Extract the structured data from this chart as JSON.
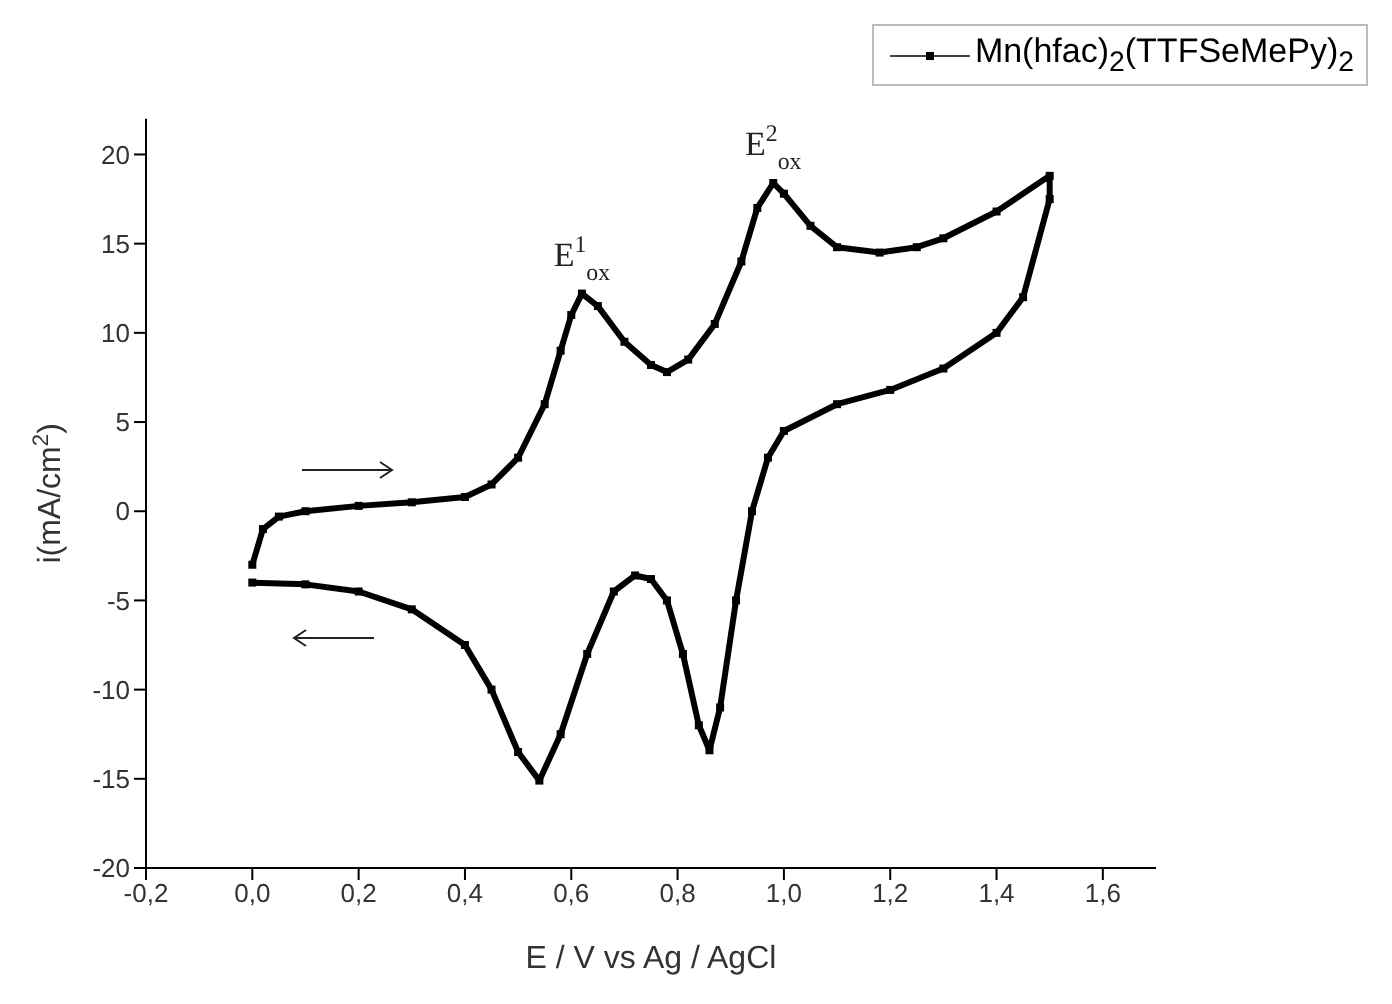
{
  "chart_data": {
    "type": "line",
    "xlabel": "E / V vs Ag / AgCl",
    "ylabel": "i(mA/cm$^{2}$)",
    "series": [
      {
        "name": "Mn(hfac)$_{2}$(TTFSeMePy)$_{2}$",
        "color": "#000000",
        "x": [
          0,
          0.02,
          0.05,
          0.1,
          0.2,
          0.3,
          0.4,
          0.45,
          0.5,
          0.55,
          0.58,
          0.6,
          0.62,
          0.65,
          0.7,
          0.75,
          0.78,
          0.82,
          0.87,
          0.92,
          0.95,
          0.98,
          1.0,
          1.05,
          1.1,
          1.18,
          1.25,
          1.3,
          1.4,
          1.5,
          1.5,
          1.45,
          1.4,
          1.3,
          1.2,
          1.1,
          1.0,
          0.97,
          0.94,
          0.91,
          0.88,
          0.86,
          0.84,
          0.81,
          0.78,
          0.75,
          0.72,
          0.68,
          0.63,
          0.58,
          0.54,
          0.5,
          0.45,
          0.4,
          0.3,
          0.2,
          0.1,
          0
        ],
        "values": [
          -3,
          -1,
          -0.3,
          0,
          0.3,
          0.5,
          0.8,
          1.5,
          3,
          6,
          9,
          11,
          12.2,
          11.5,
          9.5,
          8.2,
          7.8,
          8.5,
          10.5,
          14,
          17,
          18.4,
          17.8,
          16,
          14.8,
          14.5,
          14.8,
          15.3,
          16.8,
          18.8,
          17.5,
          12,
          10,
          8,
          6.8,
          6,
          4.5,
          3,
          0,
          -5,
          -11,
          -13.4,
          -12,
          -8,
          -5,
          -3.8,
          -3.6,
          -4.5,
          -8,
          -12.5,
          -15.1,
          -13.5,
          -10,
          -7.5,
          -5.5,
          -4.5,
          -4.1,
          -4
        ]
      }
    ],
    "xlim": [
      -0.2,
      1.7
    ],
    "xticks": [
      {
        "value": -0.2,
        "label": "-0,2"
      },
      {
        "value": 0,
        "label": "0,0"
      },
      {
        "value": 0.2,
        "label": "0,2"
      },
      {
        "value": 0.4,
        "label": "0,4"
      },
      {
        "value": 0.6,
        "label": "0,6"
      },
      {
        "value": 0.8,
        "label": "0,8"
      },
      {
        "value": 1,
        "label": "1,0"
      },
      {
        "value": 1.2,
        "label": "1,2"
      },
      {
        "value": 1.4,
        "label": "1,4"
      },
      {
        "value": 1.6,
        "label": "1,6"
      }
    ],
    "ylim": [
      -20,
      22
    ],
    "yticks": [
      -20,
      -15,
      -10,
      -5,
      0,
      5,
      10,
      15,
      20
    ],
    "annotations": [
      {
        "text": "E$^{1}$$_{ox}$",
        "x": 0.62,
        "y": 12.2
      },
      {
        "text": "E$^{2}$$_{ox}$",
        "x": 0.98,
        "y": 18.4
      }
    ],
    "legend": "top right",
    "marker": "square",
    "line_style": "solid",
    "grid": false
  }
}
